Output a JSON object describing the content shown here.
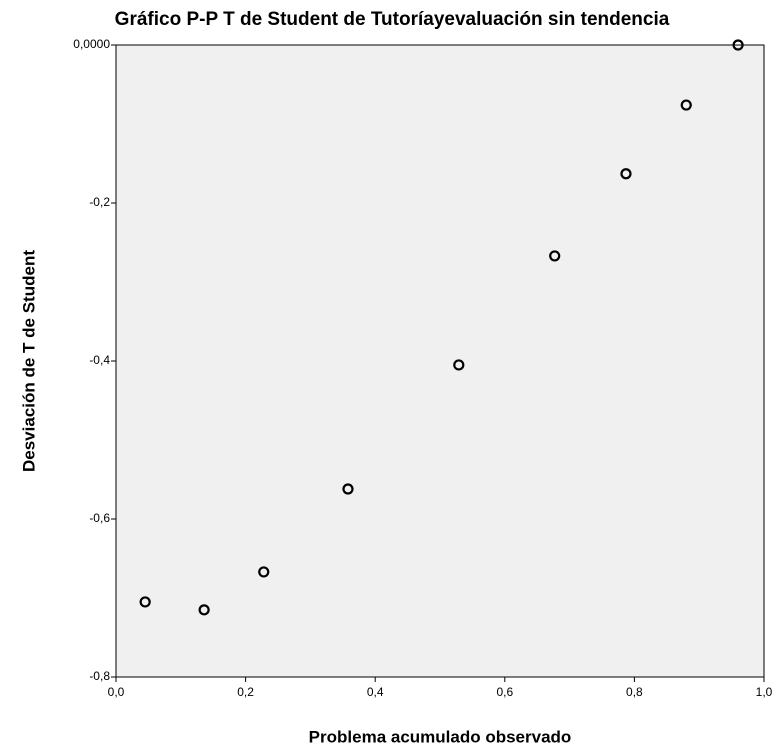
{
  "chart_data": {
    "type": "scatter",
    "title": "Gráfico P-P T de Student de Tutoríayevaluación sin tendencia",
    "x_label": "Problema acumulado observado",
    "y_label": "Desviación de T de Student",
    "x": [
      0.045,
      0.136,
      0.228,
      0.358,
      0.529,
      0.677,
      0.787,
      0.88,
      0.96
    ],
    "values": [
      -0.705,
      -0.715,
      -0.667,
      -0.562,
      -0.405,
      -0.267,
      -0.163,
      -0.076,
      0.0
    ],
    "color": "#000000",
    "xlim": [
      0,
      1
    ],
    "ylim": [
      -0.8,
      0
    ],
    "xticks": [
      {
        "value": 0,
        "label": "0,0"
      },
      {
        "value": 0.2,
        "label": "0,2"
      },
      {
        "value": 0.4,
        "label": "0,4"
      },
      {
        "value": 0.6,
        "label": "0,6"
      },
      {
        "value": 0.8,
        "label": "0,8"
      },
      {
        "value": 1,
        "label": "1,0"
      }
    ],
    "yticks": [
      {
        "value": 0,
        "label": "0,0000"
      },
      {
        "value": -0.2,
        "label": "-0,2"
      },
      {
        "value": -0.4,
        "label": "-0,4"
      },
      {
        "value": -0.6,
        "label": "-0,6"
      },
      {
        "value": -0.8,
        "label": "-0,8"
      }
    ],
    "grid": false
  }
}
